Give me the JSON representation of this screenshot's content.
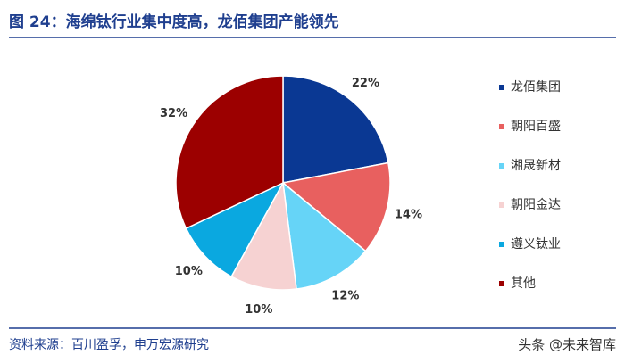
{
  "chart_data": {
    "type": "pie",
    "title": "图 24：海绵钛行业集中度高，龙佰集团产能领先",
    "categories": [
      "龙佰集团",
      "朝阳百盛",
      "湘晟新材",
      "朝阳金达",
      "遵义钛业",
      "其他"
    ],
    "values": [
      22,
      14,
      12,
      10,
      10,
      32
    ],
    "value_labels": [
      "22%",
      "14%",
      "12%",
      "10%",
      "10%",
      "32%"
    ],
    "colors": [
      "#0a3893",
      "#e8605f",
      "#66d4f7",
      "#f6d2d2",
      "#0aa8e0",
      "#9c0000"
    ],
    "source": "资料来源：百川盈孚，申万宏源研究",
    "watermark": "头条 @未来智库"
  }
}
